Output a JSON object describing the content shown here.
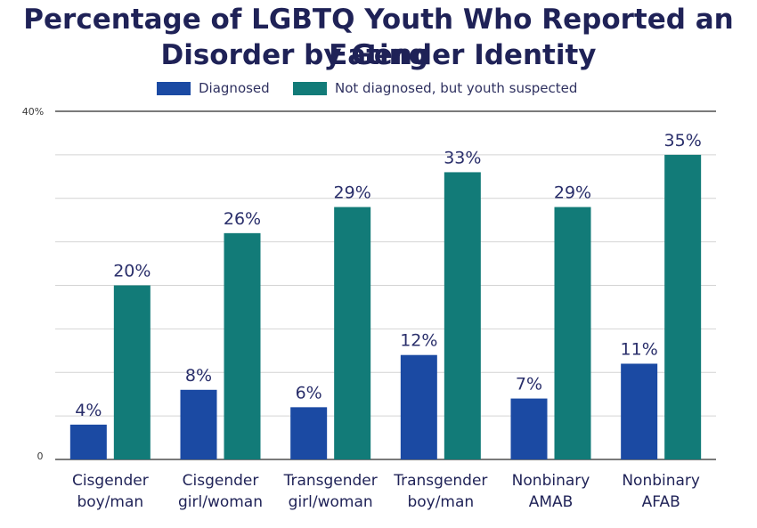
{
  "chart_data": {
    "type": "bar",
    "title_lines": [
      "Percentage of LGBTQ Youth Who Reported an Eating",
      "Disorder by Gender Identity"
    ],
    "categories": [
      [
        "Cisgender",
        "boy/man"
      ],
      [
        "Cisgender",
        "girl/woman"
      ],
      [
        "Transgender",
        "girl/woman"
      ],
      [
        "Transgender",
        "boy/man"
      ],
      [
        "Nonbinary",
        "AMAB"
      ],
      [
        "Nonbinary",
        "AFAB"
      ]
    ],
    "series": [
      {
        "name": "Diagnosed",
        "color": "#1b4aa3",
        "values": [
          4,
          8,
          6,
          12,
          7,
          11
        ],
        "labels": [
          "4%",
          "8%",
          "6%",
          "12%",
          "7%",
          "11%"
        ]
      },
      {
        "name": "Not diagnosed, but youth suspected",
        "color": "#127b78",
        "values": [
          20,
          26,
          29,
          33,
          29,
          35
        ],
        "labels": [
          "20%",
          "26%",
          "29%",
          "33%",
          "29%",
          "35%"
        ]
      }
    ],
    "ylim": [
      0,
      40
    ],
    "y_tick_labels": {
      "top": "40%",
      "bottom": "0"
    },
    "gridlines": [
      0,
      5,
      10,
      15,
      20,
      25,
      30,
      35,
      40
    ],
    "grid": true,
    "legend_position": "top-center"
  }
}
